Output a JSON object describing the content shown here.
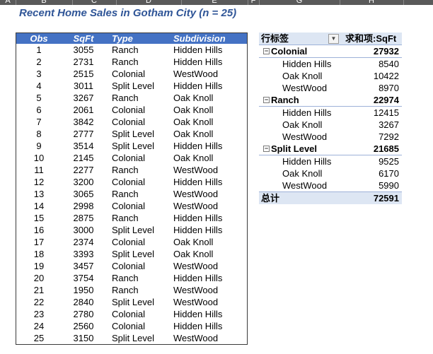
{
  "column_letters": [
    "A",
    "B",
    "C",
    "D",
    "E",
    "F",
    "G",
    "H"
  ],
  "title": "Recent Home Sales in Gotham City (n = 25)",
  "data_table": {
    "headers": [
      "Obs",
      "SqFt",
      "Type",
      "Subdivision"
    ],
    "rows": [
      [
        "1",
        "3055",
        "Ranch",
        "Hidden Hills"
      ],
      [
        "2",
        "2731",
        "Ranch",
        "Hidden Hills"
      ],
      [
        "3",
        "2515",
        "Colonial",
        "WestWood"
      ],
      [
        "4",
        "3011",
        "Split Level",
        "Hidden Hills"
      ],
      [
        "5",
        "3267",
        "Ranch",
        "Oak Knoll"
      ],
      [
        "6",
        "2061",
        "Colonial",
        "Oak Knoll"
      ],
      [
        "7",
        "3842",
        "Colonial",
        "Oak Knoll"
      ],
      [
        "8",
        "2777",
        "Split Level",
        "Oak Knoll"
      ],
      [
        "9",
        "3514",
        "Split Level",
        "Hidden Hills"
      ],
      [
        "10",
        "2145",
        "Colonial",
        "Oak Knoll"
      ],
      [
        "11",
        "2277",
        "Ranch",
        "WestWood"
      ],
      [
        "12",
        "3200",
        "Colonial",
        "Hidden Hills"
      ],
      [
        "13",
        "3065",
        "Ranch",
        "WestWood"
      ],
      [
        "14",
        "2998",
        "Colonial",
        "WestWood"
      ],
      [
        "15",
        "2875",
        "Ranch",
        "Hidden Hills"
      ],
      [
        "16",
        "3000",
        "Split Level",
        "Hidden Hills"
      ],
      [
        "17",
        "2374",
        "Colonial",
        "Oak Knoll"
      ],
      [
        "18",
        "3393",
        "Split Level",
        "Oak Knoll"
      ],
      [
        "19",
        "3457",
        "Colonial",
        "WestWood"
      ],
      [
        "20",
        "3754",
        "Ranch",
        "Hidden Hills"
      ],
      [
        "21",
        "1950",
        "Ranch",
        "WestWood"
      ],
      [
        "22",
        "2840",
        "Split Level",
        "WestWood"
      ],
      [
        "23",
        "2780",
        "Colonial",
        "Hidden Hills"
      ],
      [
        "24",
        "2560",
        "Colonial",
        "Hidden Hills"
      ],
      [
        "25",
        "3150",
        "Split Level",
        "WestWood"
      ]
    ]
  },
  "pivot": {
    "row_label_header": "行标签",
    "value_header": "求和项:SqFt",
    "groups": [
      {
        "name": "Colonial",
        "total": "27932",
        "children": [
          {
            "name": "Hidden Hills",
            "value": "8540"
          },
          {
            "name": "Oak Knoll",
            "value": "10422"
          },
          {
            "name": "WestWood",
            "value": "8970"
          }
        ]
      },
      {
        "name": "Ranch",
        "total": "22974",
        "children": [
          {
            "name": "Hidden Hills",
            "value": "12415"
          },
          {
            "name": "Oak Knoll",
            "value": "3267"
          },
          {
            "name": "WestWood",
            "value": "7292"
          }
        ]
      },
      {
        "name": "Split Level",
        "total": "21685",
        "children": [
          {
            "name": "Hidden Hills",
            "value": "9525"
          },
          {
            "name": "Oak Knoll",
            "value": "6170"
          },
          {
            "name": "WestWood",
            "value": "5990"
          }
        ]
      }
    ],
    "grand_total_label": "总计",
    "grand_total": "72591"
  },
  "colors": {
    "title": "#2f5597",
    "table_header_bg": "#4472c4",
    "pivot_header_bg": "#dde6f3"
  }
}
